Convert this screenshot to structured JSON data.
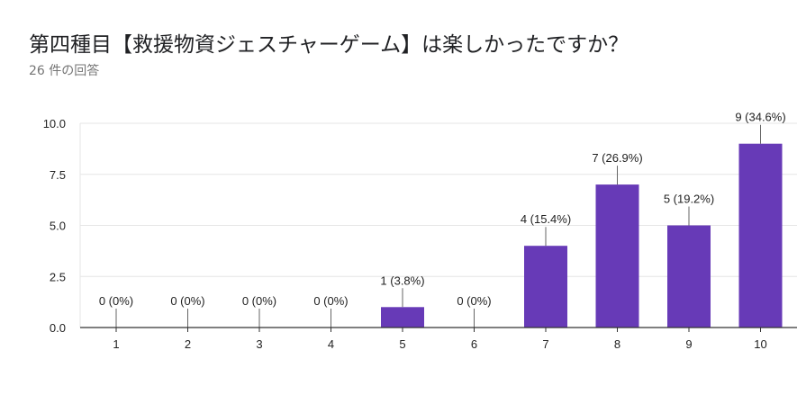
{
  "header": {
    "title": "第四種目【救援物資ジェスチャーゲーム】は楽しかったですか？",
    "response_count": "26 件の回答"
  },
  "colors": {
    "bar": "#673ab7",
    "grid": "#e6e6e6",
    "axis": "#333333"
  },
  "chart_data": {
    "type": "bar",
    "title": "",
    "xlabel": "",
    "ylabel": "",
    "categories": [
      "1",
      "2",
      "3",
      "4",
      "5",
      "6",
      "7",
      "8",
      "9",
      "10"
    ],
    "values": [
      0,
      0,
      0,
      0,
      1,
      0,
      4,
      7,
      5,
      9
    ],
    "data_labels": [
      "0 (0%)",
      "0 (0%)",
      "0 (0%)",
      "0 (0%)",
      "1 (3.8%)",
      "0 (0%)",
      "4 (15.4%)",
      "7 (26.9%)",
      "5 (19.2%)",
      "9 (34.6%)"
    ],
    "ylim": [
      0,
      10
    ],
    "yticks": [
      "0.0",
      "2.5",
      "5.0",
      "7.5",
      "10.0"
    ],
    "ytick_values": [
      0,
      2.5,
      5,
      7.5,
      10
    ],
    "grid": true,
    "legend": "none"
  }
}
